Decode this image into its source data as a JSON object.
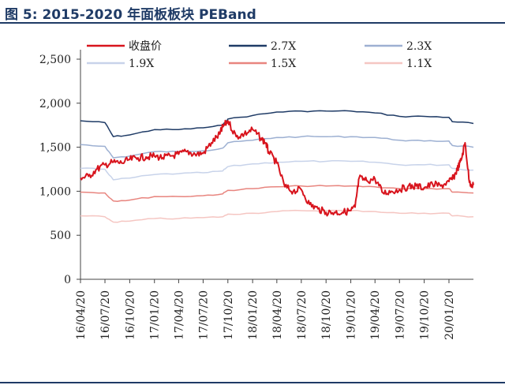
{
  "figure": {
    "title": "图 5: 2015-2020 年面板板块 PEBand"
  },
  "chart_data": {
    "type": "line",
    "xlabel": "",
    "ylabel": "",
    "ylim": [
      0,
      2500
    ],
    "yticks": [
      0,
      500,
      1000,
      1500,
      2000,
      2500
    ],
    "ytick_labels": [
      "0",
      "500",
      "1,000",
      "1,500",
      "2,000",
      "2,500"
    ],
    "xlim": [
      "2016-04-20",
      "2020-04-20"
    ],
    "xticks": [
      "2016-04-20",
      "2016-07-20",
      "2016-10-20",
      "2017-01-20",
      "2017-04-20",
      "2017-07-20",
      "2017-10-20",
      "2018-01-20",
      "2018-04-20",
      "2018-07-20",
      "2018-10-20",
      "2019-01-20",
      "2019-04-20",
      "2019-07-20",
      "2019-10-20",
      "2020-01-20"
    ],
    "xtick_labels": [
      "16/04/20",
      "16/07/20",
      "16/10/20",
      "17/01/20",
      "17/04/20",
      "17/07/20",
      "17/10/20",
      "18/01/20",
      "18/04/20",
      "18/07/20",
      "18/10/20",
      "19/01/20",
      "19/04/20",
      "19/07/20",
      "19/10/20",
      "20/01/20"
    ],
    "legend_position": "top",
    "grid": false,
    "series": [
      {
        "name": "收盘价",
        "color": "#d8141d",
        "width": 2,
        "x": [
          "2016-04-20",
          "2016-05-20",
          "2016-06-20",
          "2016-07-20",
          "2016-08-20",
          "2016-09-20",
          "2016-10-20",
          "2016-11-20",
          "2016-12-20",
          "2017-01-20",
          "2017-02-20",
          "2017-03-20",
          "2017-04-20",
          "2017-05-20",
          "2017-06-20",
          "2017-07-20",
          "2017-08-20",
          "2017-09-20",
          "2017-10-01",
          "2017-10-20",
          "2017-11-20",
          "2017-12-20",
          "2018-01-20",
          "2018-02-20",
          "2018-03-10",
          "2018-03-20",
          "2018-04-20",
          "2018-05-20",
          "2018-06-20",
          "2018-07-20",
          "2018-08-20",
          "2018-09-20",
          "2018-10-20",
          "2018-11-20",
          "2018-12-20",
          "2019-01-20",
          "2019-02-05",
          "2019-02-20",
          "2019-03-20",
          "2019-04-20",
          "2019-05-20",
          "2019-06-20",
          "2019-07-20",
          "2019-08-20",
          "2019-09-20",
          "2019-10-20",
          "2019-11-20",
          "2019-12-20",
          "2020-01-20",
          "2020-02-05",
          "2020-02-20",
          "2020-03-05",
          "2020-03-20",
          "2020-04-05",
          "2020-04-20"
        ],
        "values": [
          1150,
          1170,
          1250,
          1300,
          1330,
          1320,
          1360,
          1380,
          1390,
          1400,
          1380,
          1400,
          1420,
          1450,
          1420,
          1430,
          1550,
          1650,
          1730,
          1800,
          1620,
          1650,
          1700,
          1600,
          1550,
          1450,
          1320,
          1050,
          1000,
          1020,
          850,
          800,
          760,
          760,
          760,
          780,
          820,
          1150,
          1120,
          1140,
          980,
          1000,
          1020,
          1050,
          1060,
          1040,
          1080,
          1060,
          1110,
          1150,
          1250,
          1350,
          1550,
          1100,
          1070
        ]
      },
      {
        "name": "2.7X",
        "color": "#1f3b66",
        "width": 1.5,
        "x": [
          "2016-04-20",
          "2016-07-20",
          "2016-08-20",
          "2016-10-20",
          "2017-01-20",
          "2017-04-20",
          "2017-07-20",
          "2017-10-01",
          "2017-10-20",
          "2018-01-20",
          "2018-04-20",
          "2018-07-20",
          "2018-10-20",
          "2019-01-20",
          "2019-04-20",
          "2019-07-20",
          "2019-10-20",
          "2020-01-20",
          "2020-02-01",
          "2020-04-20"
        ],
        "values": [
          1800,
          1780,
          1620,
          1640,
          1700,
          1700,
          1720,
          1750,
          1820,
          1860,
          1900,
          1910,
          1910,
          1910,
          1890,
          1850,
          1850,
          1840,
          1790,
          1770
        ]
      },
      {
        "name": "2.3X",
        "color": "#9db0d2",
        "width": 1.5,
        "x": [
          "2016-04-20",
          "2016-07-20",
          "2016-08-20",
          "2016-10-20",
          "2017-01-20",
          "2017-04-20",
          "2017-07-20",
          "2017-10-01",
          "2017-10-20",
          "2018-01-20",
          "2018-04-20",
          "2018-07-20",
          "2018-10-20",
          "2019-01-20",
          "2019-04-20",
          "2019-07-20",
          "2019-10-20",
          "2020-01-20",
          "2020-02-01",
          "2020-04-20"
        ],
        "values": [
          1530,
          1510,
          1380,
          1400,
          1450,
          1450,
          1460,
          1490,
          1550,
          1580,
          1610,
          1620,
          1620,
          1620,
          1610,
          1580,
          1570,
          1570,
          1520,
          1500
        ]
      },
      {
        "name": "1.9X",
        "color": "#c8d3ea",
        "width": 1.5,
        "x": [
          "2016-04-20",
          "2016-07-20",
          "2016-08-20",
          "2016-10-20",
          "2017-01-20",
          "2017-04-20",
          "2017-07-20",
          "2017-10-01",
          "2017-10-20",
          "2018-01-20",
          "2018-04-20",
          "2018-07-20",
          "2018-10-20",
          "2019-01-20",
          "2019-04-20",
          "2019-07-20",
          "2019-10-20",
          "2020-01-20",
          "2020-02-01",
          "2020-04-20"
        ],
        "values": [
          1260,
          1250,
          1130,
          1150,
          1190,
          1200,
          1210,
          1230,
          1280,
          1310,
          1330,
          1340,
          1340,
          1340,
          1330,
          1300,
          1300,
          1300,
          1260,
          1240
        ]
      },
      {
        "name": "1.5X",
        "color": "#e8857f",
        "width": 1.5,
        "x": [
          "2016-04-20",
          "2016-07-20",
          "2016-08-20",
          "2016-10-20",
          "2017-01-20",
          "2017-04-20",
          "2017-07-20",
          "2017-10-01",
          "2017-10-20",
          "2018-01-20",
          "2018-04-20",
          "2018-07-20",
          "2018-10-20",
          "2019-01-20",
          "2019-04-20",
          "2019-07-20",
          "2019-10-20",
          "2020-01-20",
          "2020-02-01",
          "2020-04-20"
        ],
        "values": [
          990,
          980,
          890,
          900,
          940,
          940,
          950,
          970,
          1010,
          1030,
          1050,
          1060,
          1060,
          1060,
          1050,
          1030,
          1030,
          1030,
          990,
          980
        ]
      },
      {
        "name": "1.1X",
        "color": "#f5c6c2",
        "width": 1.5,
        "x": [
          "2016-04-20",
          "2016-07-20",
          "2016-08-20",
          "2016-10-20",
          "2017-01-20",
          "2017-04-20",
          "2017-07-20",
          "2017-10-01",
          "2017-10-20",
          "2018-01-20",
          "2018-04-20",
          "2018-07-20",
          "2018-10-20",
          "2019-01-20",
          "2019-04-20",
          "2019-07-20",
          "2019-10-20",
          "2020-01-20",
          "2020-02-01",
          "2020-04-20"
        ],
        "values": [
          720,
          710,
          650,
          660,
          690,
          690,
          700,
          710,
          740,
          750,
          770,
          780,
          780,
          780,
          770,
          750,
          750,
          750,
          720,
          710
        ]
      }
    ]
  }
}
